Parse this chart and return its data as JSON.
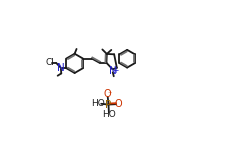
{
  "bg_color": "#ffffff",
  "bond_color": "#1a1a1a",
  "aromatic_color": "#707070",
  "n_color": "#2020cc",
  "o_color": "#cc3300",
  "p_color": "#996600",
  "cl_color": "#1a1a1a",
  "lw": 1.3,
  "fig_w": 2.35,
  "fig_h": 1.43,
  "dpi": 100,
  "xlim": [
    0,
    2.35
  ],
  "ylim": [
    0,
    1.43
  ]
}
